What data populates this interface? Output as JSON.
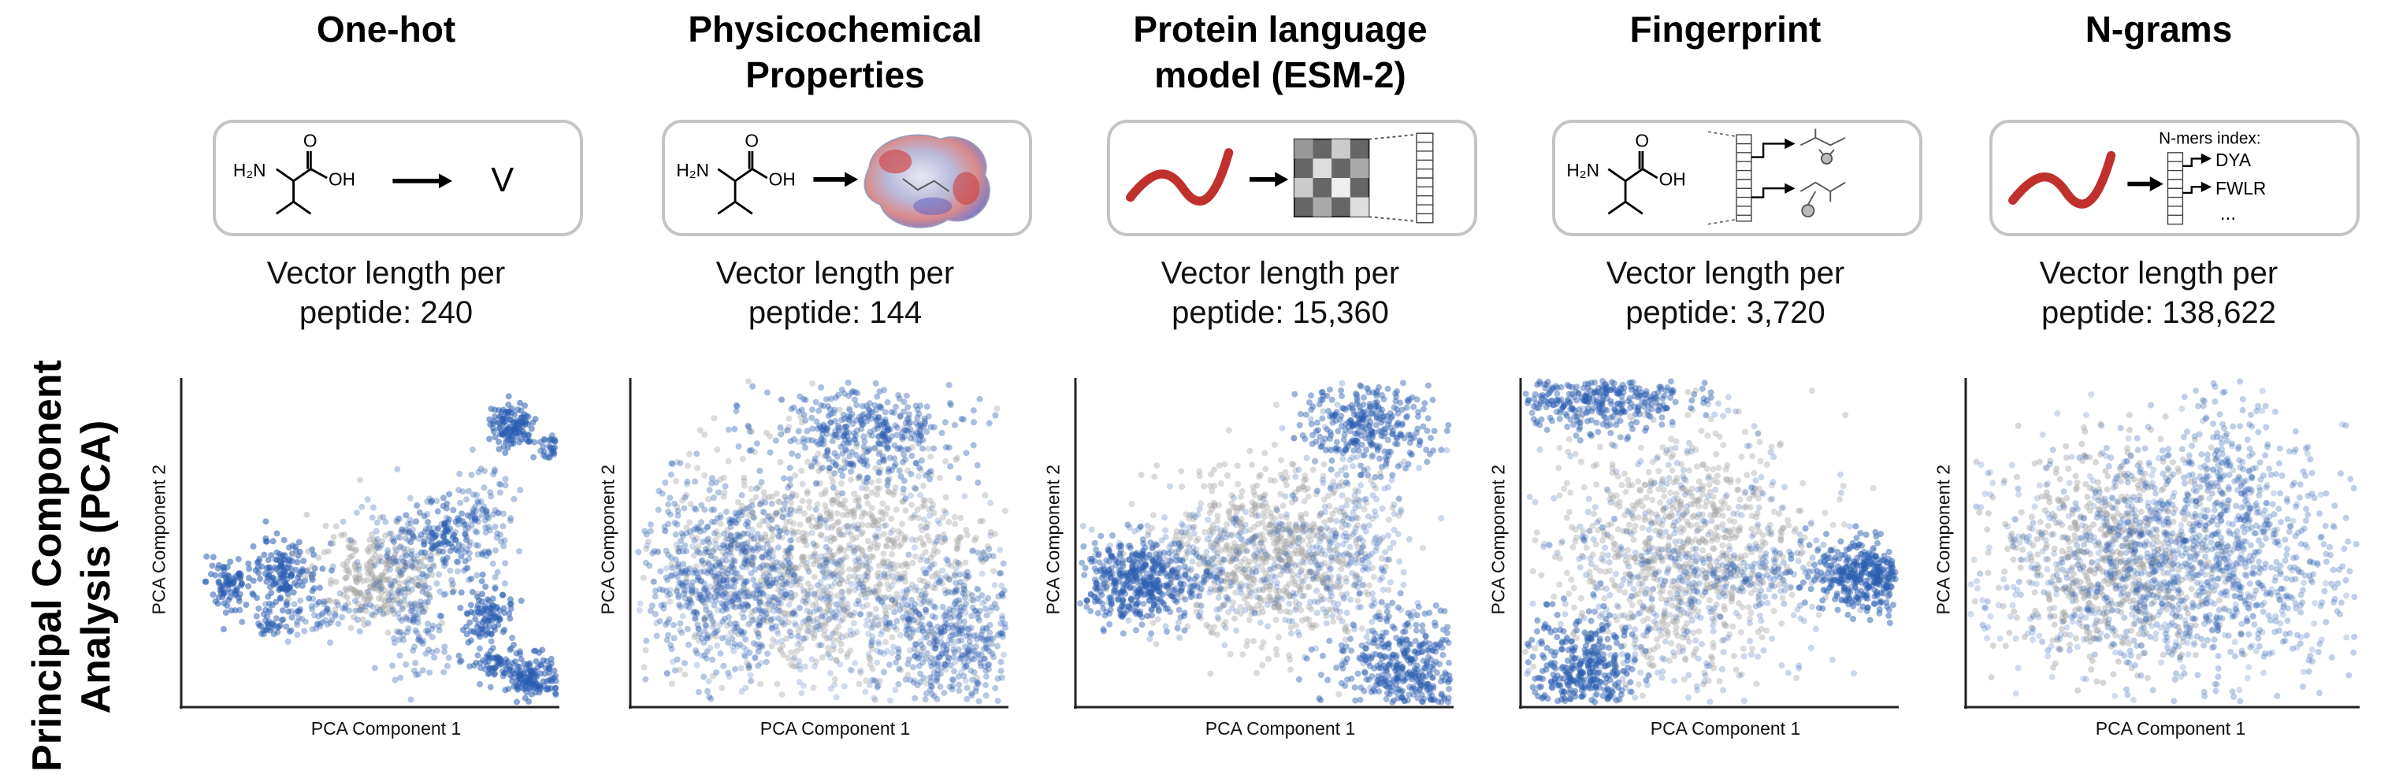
{
  "row_title": [
    "Principal Component",
    "Analysis (PCA)"
  ],
  "axis_labels": {
    "x": "PCA Component 1",
    "y": "PCA Component 2"
  },
  "colors": {
    "highlight": "#2a5db0",
    "background_points": "#a6a6a6",
    "peptide_line": "#c0302c"
  },
  "panels": [
    {
      "title": [
        "One-hot"
      ],
      "vector": [
        "Vector length per",
        "peptide: 240"
      ],
      "icon_text": {
        "amine": "H₂N",
        "acid_o": "O",
        "acid_oh": "OH",
        "letter": "V"
      }
    },
    {
      "title": [
        "Physicochemical",
        "Properties"
      ],
      "vector": [
        "Vector length per",
        "peptide: 144"
      ],
      "icon_text": {
        "amine": "H₂N",
        "acid_o": "O",
        "acid_oh": "OH"
      }
    },
    {
      "title": [
        "Protein language",
        "model (ESM-2)"
      ],
      "vector": [
        "Vector length per",
        "peptide: 15,360"
      ],
      "icon_text": {}
    },
    {
      "title": [
        "Fingerprint"
      ],
      "vector": [
        "Vector length per",
        "peptide: 3,720"
      ],
      "icon_text": {
        "amine": "H₂N",
        "acid_o": "O",
        "acid_oh": "OH"
      }
    },
    {
      "title": [
        "N-grams"
      ],
      "vector": [
        "Vector length per",
        "peptide: 138,622"
      ],
      "icon_text": {
        "header": "N-mers index:",
        "item1": "DYA",
        "item2": "FWLR",
        "item3": "..."
      }
    }
  ]
}
